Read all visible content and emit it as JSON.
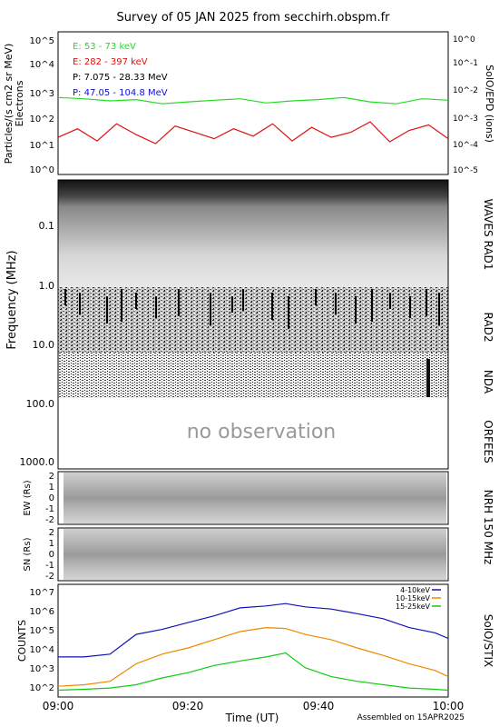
{
  "title": "Survey of 05 JAN 2025 from secchirh.obspm.fr",
  "footer": "Assembled on 15APR2025",
  "x_axis": {
    "label": "Time (UT)",
    "ticks": [
      "09:00",
      "09:20",
      "09:40",
      "10:00"
    ]
  },
  "particles": {
    "ylabel_left": "Particles/(s cm2 sr MeV)",
    "ylabel_left2": "Electrons",
    "ylabel_right": "SolO/EPD (ions)",
    "left_ticks": [
      "10^0",
      "10^1",
      "10^2",
      "10^3",
      "10^4",
      "10^5"
    ],
    "right_ticks": [
      "10^-5",
      "10^-4",
      "10^-3",
      "10^-2",
      "10^-1",
      "10^0"
    ],
    "legend": [
      {
        "label": "E: 53 - 73 keV",
        "color": "#22dd22"
      },
      {
        "label": "E: 282 - 397 keV",
        "color": "#dd1111"
      },
      {
        "label": "P: 7.075 - 28.33 MeV",
        "color": "#000000"
      },
      {
        "label": "P: 47.05 - 104.8 MeV",
        "color": "#1111cc"
      }
    ]
  },
  "spectrogram": {
    "ylabel": "Frequency (MHz)",
    "ticks": [
      "0.1",
      "1.0",
      "10.0",
      "100.0",
      "1000.0"
    ],
    "right_labels": [
      "WAVES RAD1",
      "RAD2",
      "NDA",
      "ORFEES"
    ],
    "no_observation": "no observation"
  },
  "nrh": {
    "right_label": "NRH 150 MHz",
    "ew_label": "EW (Rs)",
    "sn_label": "SN (Rs)",
    "ticks": [
      "2",
      "1",
      "0",
      "-1",
      "-2"
    ]
  },
  "stix": {
    "ylabel": "COUNTS",
    "right_label": "SolO/STIX",
    "ticks": [
      "10^2",
      "10^3",
      "10^4",
      "10^5",
      "10^6",
      "10^7"
    ]
  },
  "chart_data": {
    "type": "line",
    "title": "Survey of 05 JAN 2025 from secchirh.obspm.fr",
    "xlabel": "Time (UT)",
    "xlim": [
      "09:00",
      "10:00"
    ],
    "panels": [
      {
        "name": "SolO/EPD",
        "ylim_left": [
          1,
          100000
        ],
        "ylim_right": [
          1e-05,
          1
        ],
        "log": true,
        "series": [
          {
            "name": "E: 53 - 73 keV",
            "color": "#22dd22",
            "x_min": [
              0,
              4,
              8,
              12,
              16,
              20,
              24,
              28,
              32,
              36,
              40,
              44,
              48,
              52,
              56,
              60
            ],
            "values": [
              500,
              450,
              380,
              420,
              300,
              350,
              400,
              450,
              320,
              380,
              420,
              500,
              350,
              300,
              450,
              400
            ]
          },
          {
            "name": "E: 282 - 397 keV",
            "color": "#dd1111",
            "x_min": [
              0,
              3,
              6,
              9,
              12,
              15,
              18,
              21,
              24,
              27,
              30,
              33,
              36,
              39,
              42,
              45,
              48,
              51,
              54,
              57,
              60
            ],
            "values": [
              20,
              40,
              15,
              60,
              25,
              12,
              50,
              30,
              18,
              40,
              22,
              60,
              15,
              45,
              20,
              30,
              70,
              14,
              35,
              55,
              18
            ]
          }
        ]
      },
      {
        "name": "SolO/STIX",
        "ylim": [
          100,
          10000000
        ],
        "log": true,
        "series": [
          {
            "name": "4-10keV",
            "color": "#1111bb",
            "x_min": [
              0,
              4,
              8,
              12,
              16,
              20,
              24,
              28,
              32,
              35,
              38,
              42,
              46,
              50,
              54,
              58,
              60
            ],
            "values": [
              6000,
              6000,
              8000,
              60000,
              100000,
              200000,
              400000,
              900000,
              1100000,
              1400000,
              1000000,
              800000,
              500000,
              300000,
              120000,
              70000,
              40000
            ]
          },
          {
            "name": "10-15keV",
            "color": "#ee8800",
            "x_min": [
              0,
              4,
              8,
              12,
              16,
              20,
              24,
              28,
              32,
              35,
              38,
              42,
              46,
              50,
              54,
              58,
              60
            ],
            "values": [
              300,
              350,
              500,
              3000,
              8000,
              15000,
              35000,
              80000,
              120000,
              110000,
              60000,
              35000,
              15000,
              7000,
              3000,
              1500,
              800
            ]
          },
          {
            "name": "15-25keV",
            "color": "#11cc11",
            "x_min": [
              0,
              4,
              8,
              12,
              16,
              20,
              24,
              28,
              32,
              35,
              38,
              42,
              46,
              50,
              54,
              58,
              60
            ],
            "values": [
              200,
              220,
              250,
              350,
              700,
              1200,
              2500,
              4000,
              6000,
              9000,
              2000,
              800,
              500,
              350,
              250,
              220,
              200
            ]
          }
        ]
      }
    ]
  }
}
